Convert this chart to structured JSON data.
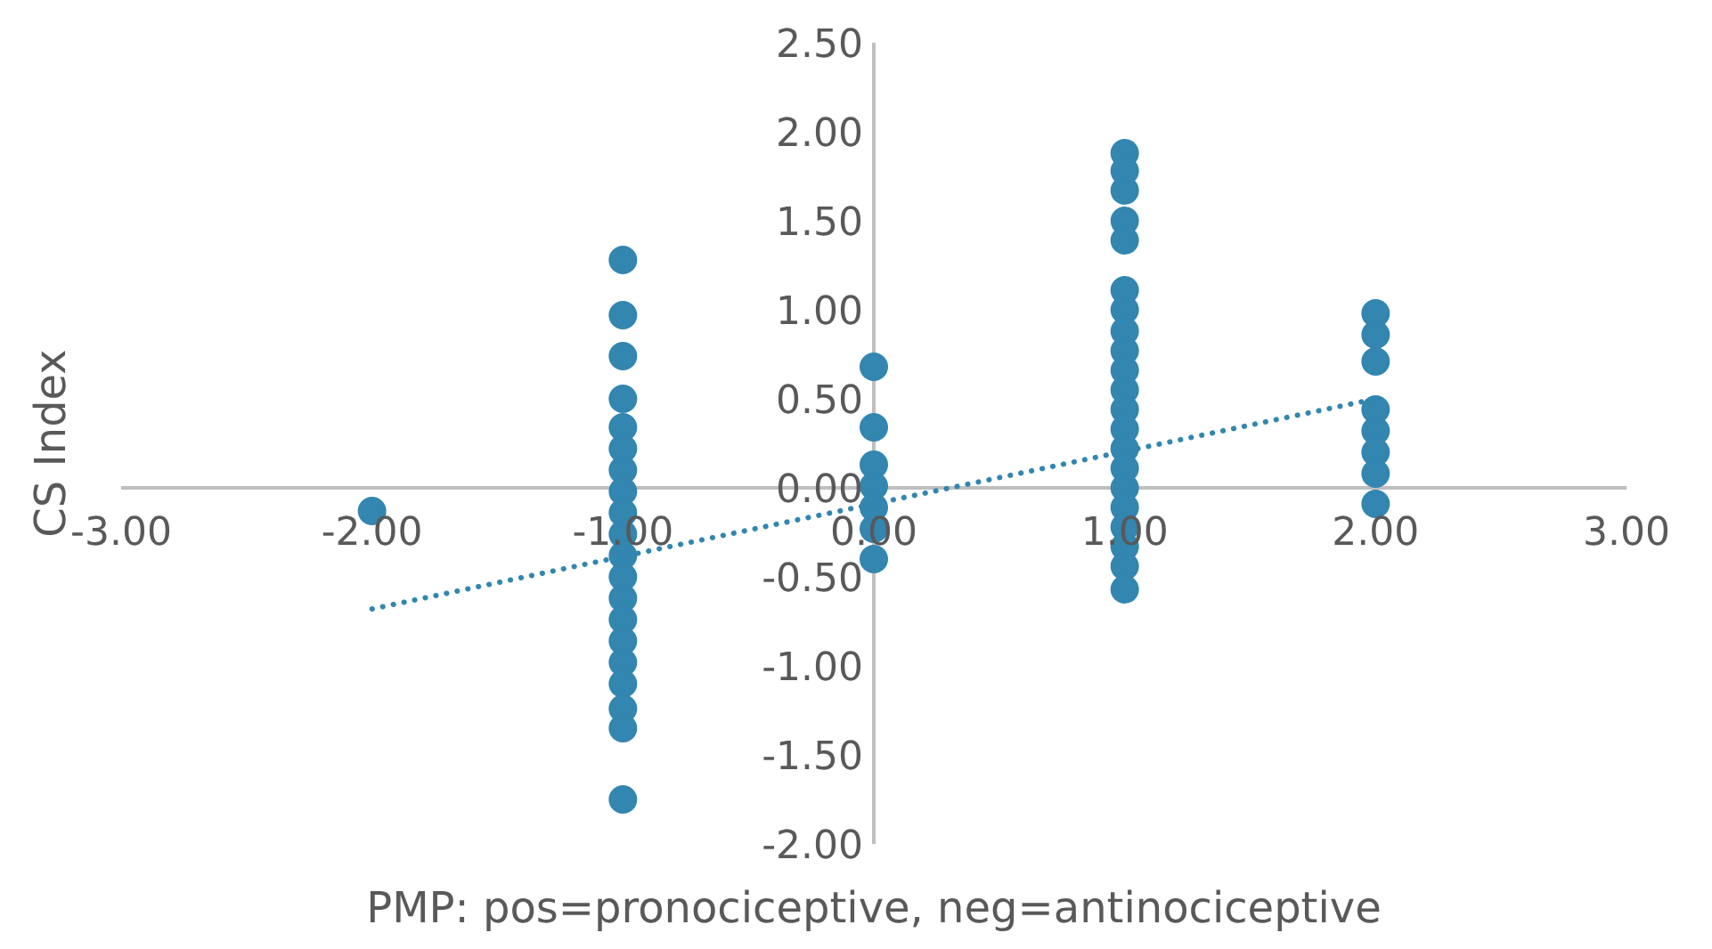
{
  "chart_data": {
    "type": "scatter",
    "xlabel": "PMP: pos=pronociceptive, neg=antinociceptive",
    "ylabel": "CS Index",
    "xlim": [
      -3,
      3
    ],
    "ylim": [
      -2,
      2.5
    ],
    "xticks": [
      {
        "value": -3,
        "label": "-3.00"
      },
      {
        "value": -2,
        "label": "-2.00"
      },
      {
        "value": -1,
        "label": "-1.00"
      },
      {
        "value": 0,
        "label": "0.00"
      },
      {
        "value": 1,
        "label": "1.00"
      },
      {
        "value": 2,
        "label": "2.00"
      },
      {
        "value": 3,
        "label": "3.00"
      }
    ],
    "yticks": [
      {
        "value": -2,
        "label": "-2.00"
      },
      {
        "value": -1.5,
        "label": "-1.50"
      },
      {
        "value": -1,
        "label": "-1.00"
      },
      {
        "value": -0.5,
        "label": "-0.50"
      },
      {
        "value": 0,
        "label": "0.00"
      },
      {
        "value": 0.5,
        "label": "0.50"
      },
      {
        "value": 1,
        "label": "1.00"
      },
      {
        "value": 1.5,
        "label": "1.50"
      },
      {
        "value": 2,
        "label": "2.00"
      },
      {
        "value": 2.5,
        "label": "2.50"
      }
    ],
    "series": [
      {
        "type": "scatter",
        "color": "#3286b0",
        "marker": "circle",
        "x": [
          -2,
          -1,
          -1,
          -1,
          -1,
          -1,
          -1,
          -1,
          -1,
          -1,
          -1,
          -1,
          -1,
          -1,
          -1,
          -1,
          -1,
          -1,
          -1,
          -1,
          -1,
          0,
          0,
          0,
          0,
          0,
          0,
          0,
          1,
          1,
          1,
          1,
          1,
          1,
          1,
          1,
          1,
          1,
          1,
          1,
          1,
          1,
          1,
          1,
          1,
          1,
          1,
          1,
          1,
          2,
          2,
          2,
          2,
          2,
          2,
          2,
          2
        ],
        "values": [
          -0.13,
          1.28,
          0.97,
          0.74,
          0.5,
          0.34,
          0.22,
          0.1,
          -0.02,
          -0.14,
          -0.26,
          -0.38,
          -0.5,
          -0.62,
          -0.74,
          -0.86,
          -0.98,
          -1.1,
          -1.24,
          -1.35,
          -1.75,
          0.68,
          0.34,
          0.13,
          0.01,
          -0.11,
          -0.23,
          -0.4,
          1.88,
          1.78,
          1.67,
          1.5,
          1.39,
          1.11,
          1.0,
          0.88,
          0.77,
          0.66,
          0.55,
          0.44,
          0.33,
          0.22,
          0.11,
          0,
          -0.11,
          -0.22,
          -0.33,
          -0.44,
          -0.57,
          0.98,
          0.86,
          0.71,
          0.44,
          0.32,
          0.2,
          0.08,
          -0.09
        ]
      },
      {
        "type": "line",
        "color": "#3286b0",
        "marker": "none",
        "line_style": "dotted",
        "x": [
          -2,
          2
        ],
        "values": [
          -0.68,
          0.5
        ]
      }
    ]
  }
}
